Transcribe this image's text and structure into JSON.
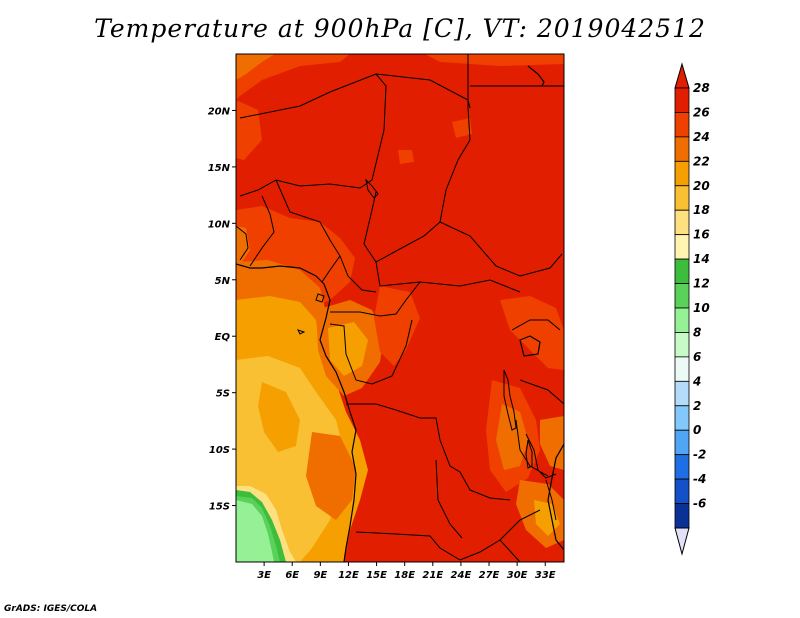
{
  "title": "Temperature at 900hPa [C], VT: 2019042512",
  "credit": "GrADS: IGES/COLA",
  "map": {
    "lon_range": [
      0,
      35
    ],
    "lat_range": [
      -20,
      25
    ],
    "x_ticks": [
      {
        "lon": 3,
        "label": "3E"
      },
      {
        "lon": 6,
        "label": "6E"
      },
      {
        "lon": 9,
        "label": "9E"
      },
      {
        "lon": 12,
        "label": "12E"
      },
      {
        "lon": 15,
        "label": "15E"
      },
      {
        "lon": 18,
        "label": "18E"
      },
      {
        "lon": 21,
        "label": "21E"
      },
      {
        "lon": 24,
        "label": "24E"
      },
      {
        "lon": 27,
        "label": "27E"
      },
      {
        "lon": 30,
        "label": "30E"
      },
      {
        "lon": 33,
        "label": "33E"
      }
    ],
    "y_ticks": [
      {
        "lat": 20,
        "label": "20N"
      },
      {
        "lat": 15,
        "label": "15N"
      },
      {
        "lat": 10,
        "label": "10N"
      },
      {
        "lat": 5,
        "label": "5N"
      },
      {
        "lat": 0,
        "label": "EQ"
      },
      {
        "lat": -5,
        "label": "5S"
      },
      {
        "lat": -10,
        "label": "10S"
      },
      {
        "lat": -15,
        "label": "15S"
      }
    ]
  },
  "colorbar": {
    "labels": [
      "28",
      "26",
      "24",
      "22",
      "20",
      "18",
      "16",
      "14",
      "12",
      "10",
      "8",
      "6",
      "4",
      "2",
      "0",
      "-2",
      "-4",
      "-6"
    ],
    "colors": [
      "#e11e00",
      "#f04000",
      "#f06e00",
      "#f5a000",
      "#fac034",
      "#fde080",
      "#fff5b0",
      "#3cbe3c",
      "#5ad25a",
      "#96f096",
      "#c8fac8",
      "#ebfaf5",
      "#b4dcfa",
      "#82c8fa",
      "#50a5f5",
      "#1e6ee6",
      "#1450c8",
      "#0a3296",
      "#0a0a6e"
    ],
    "top_arrow_color": "#e11e00",
    "bottom_arrow_color": "#e1e1fa"
  }
}
